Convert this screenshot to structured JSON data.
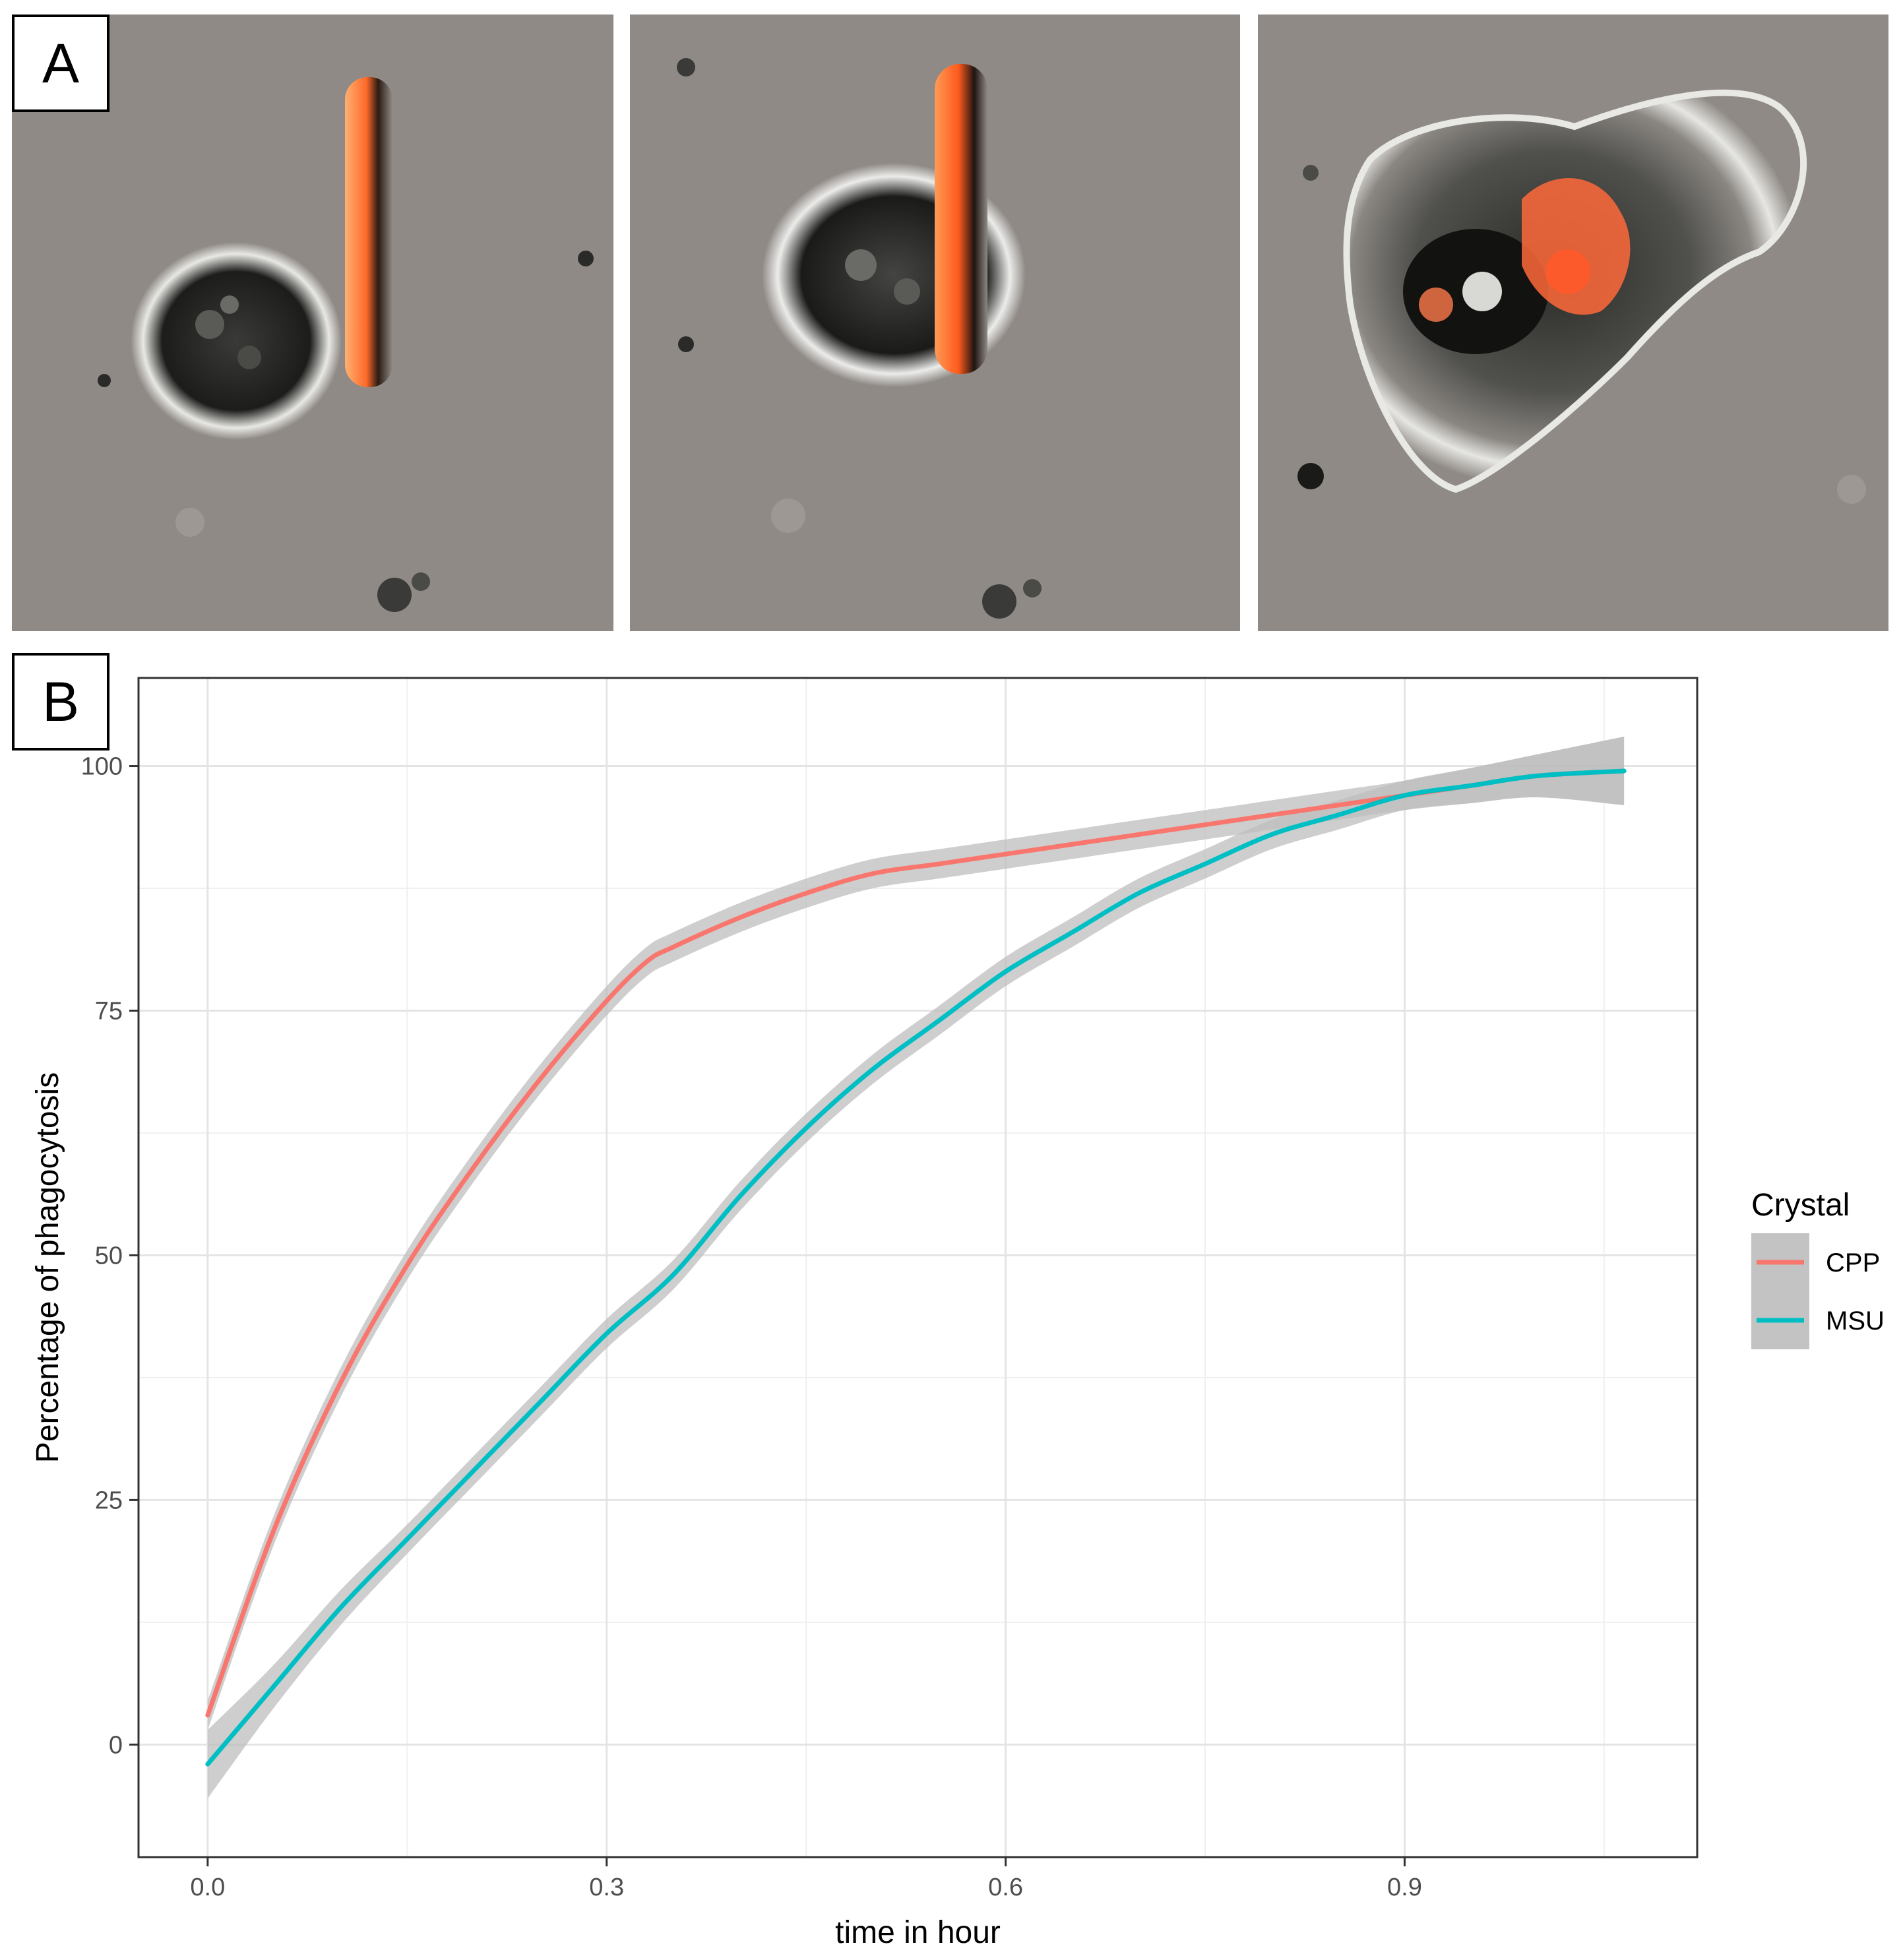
{
  "panel_a": {
    "label": "A",
    "frames": [
      {
        "name": "frame-approach",
        "description": "cell-approaching-crystal"
      },
      {
        "name": "frame-contact",
        "description": "cell-engulfing-crystal"
      },
      {
        "name": "frame-engulfed",
        "description": "crystal-internalized"
      }
    ],
    "colors": {
      "background": "#8f8a86",
      "crystal": "#ff7a3c",
      "cell_dark": "#1a1a1a"
    }
  },
  "panel_b": {
    "label": "B"
  },
  "chart_data": {
    "type": "line",
    "title": "",
    "xlabel": "time in hour",
    "ylabel": "Percentage of phagocytosis",
    "xlim": [
      -0.052,
      1.12
    ],
    "ylim": [
      -11.5,
      109
    ],
    "x_ticks": [
      0.0,
      0.3,
      0.6,
      0.9
    ],
    "x_tick_labels": [
      "0.0",
      "0.3",
      "0.6",
      "0.9"
    ],
    "y_ticks": [
      0,
      25,
      50,
      75,
      100
    ],
    "y_tick_labels": [
      "0",
      "25",
      "50",
      "75",
      "100"
    ],
    "grid": true,
    "legend": {
      "title": "Crystal",
      "position": "right"
    },
    "series": [
      {
        "name": "CPP",
        "color": "#f8766d",
        "x": [
          0.0,
          0.05,
          0.1,
          0.15,
          0.2,
          0.25,
          0.3,
          0.33,
          0.35,
          0.4,
          0.45,
          0.5,
          0.55,
          0.6,
          0.65,
          0.7,
          0.75,
          0.8,
          0.85,
          0.9,
          0.95,
          1.0,
          1.065
        ],
        "y": [
          3,
          22,
          37,
          49,
          59,
          68,
          76,
          80,
          81.5,
          84.5,
          87,
          89,
          90,
          91,
          92,
          93,
          94,
          95,
          96,
          97,
          98,
          99,
          99.5
        ],
        "ci": [
          1.5,
          1.5,
          1.5,
          1.5,
          1.5,
          1.5,
          1.5,
          1.5,
          1.5,
          1.5,
          1.5,
          1.5,
          1.5,
          1.5,
          1.5,
          1.5,
          1.5,
          1.5,
          1.5,
          1.5,
          1.8,
          2.2,
          3.5
        ]
      },
      {
        "name": "MSU",
        "color": "#00bfc4",
        "x": [
          0.0,
          0.05,
          0.1,
          0.15,
          0.2,
          0.25,
          0.3,
          0.35,
          0.4,
          0.45,
          0.5,
          0.55,
          0.6,
          0.65,
          0.7,
          0.75,
          0.8,
          0.85,
          0.9,
          0.95,
          1.0,
          1.065
        ],
        "y": [
          -2,
          6,
          14,
          21,
          28,
          35,
          42,
          48,
          56,
          63,
          69,
          74,
          79,
          83,
          87,
          90,
          93,
          95,
          97,
          98,
          99,
          99.5
        ],
        "ci": [
          3.5,
          2.2,
          1.8,
          1.5,
          1.5,
          1.5,
          1.5,
          1.5,
          1.5,
          1.5,
          1.5,
          1.5,
          1.5,
          1.5,
          1.5,
          1.5,
          1.5,
          1.5,
          1.5,
          1.8,
          2.2,
          3.5
        ]
      }
    ],
    "ci_color": "#bdbdbd"
  }
}
